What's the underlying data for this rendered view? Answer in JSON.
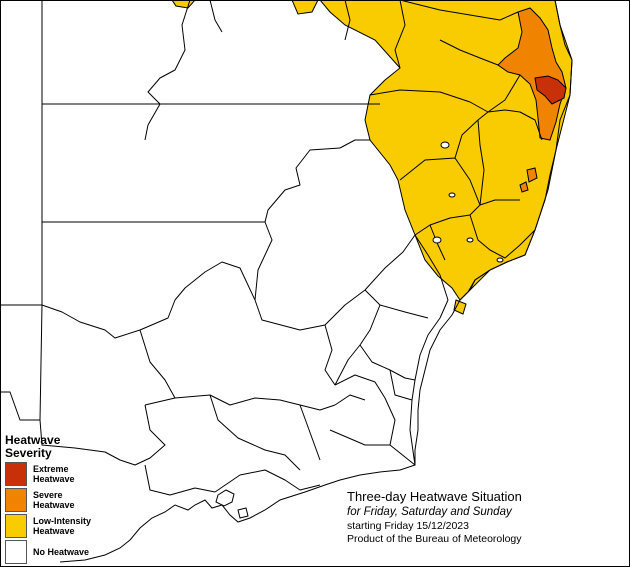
{
  "legend": {
    "title_line1": "Heatwave",
    "title_line2": "Severity",
    "items": [
      {
        "label_line1": "Extreme",
        "label_line2": "Heatwave",
        "color": "#c8300a"
      },
      {
        "label_line1": "Severe",
        "label_line2": "Heatwave",
        "color": "#f08400"
      },
      {
        "label_line1": "Low-Intensity",
        "label_line2": "Heatwave",
        "color": "#f8cc00"
      },
      {
        "label_line1": "No Heatwave",
        "label_line2": "",
        "color": "#ffffff"
      }
    ]
  },
  "info": {
    "title": "Three-day Heatwave Situation",
    "days": "for Friday, Saturday and Sunday",
    "start": "starting Friday 15/12/2023",
    "product": "Product of the Bureau of Meteorology"
  },
  "colors": {
    "low_intensity": "#f8cc00",
    "severe": "#f08400",
    "extreme": "#c8300a",
    "boundary": "#000000",
    "background": "#ffffff"
  }
}
